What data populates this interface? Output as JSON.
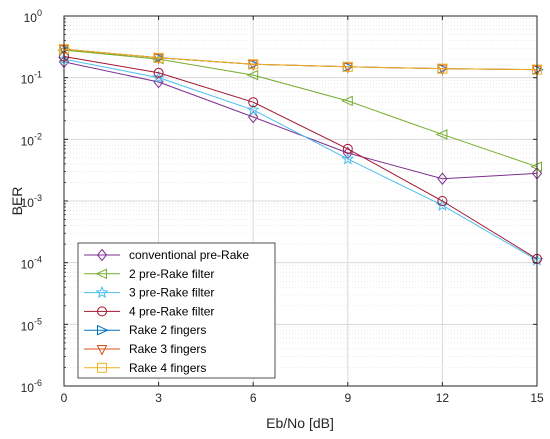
{
  "chart_data": {
    "type": "line",
    "title": "",
    "xlabel": "Eb/No [dB]",
    "ylabel": "BER",
    "x": [
      0,
      3,
      6,
      9,
      12,
      15
    ],
    "xlim": [
      0,
      15
    ],
    "ylim": [
      1e-06,
      1
    ],
    "yscale": "log",
    "xticks": [
      "0",
      "3",
      "6",
      "9",
      "12",
      "15"
    ],
    "yticks": [
      {
        "base": "10",
        "exp": "-6"
      },
      {
        "base": "10",
        "exp": "-5"
      },
      {
        "base": "10",
        "exp": "-4"
      },
      {
        "base": "10",
        "exp": "-3"
      },
      {
        "base": "10",
        "exp": "-2"
      },
      {
        "base": "10",
        "exp": "-1"
      },
      {
        "base": "10",
        "exp": "0"
      }
    ],
    "grid": true,
    "legend_position": "bottom-left",
    "series": [
      {
        "name": "conventional pre-Rake",
        "marker": "diamond",
        "color": "#7E2F8E",
        "values": [
          0.18,
          0.085,
          0.023,
          0.006,
          0.0023,
          0.0028
        ]
      },
      {
        "name": "2 pre-Rake filter",
        "marker": "triangle-left",
        "color": "#77AC30",
        "values": [
          0.28,
          0.2,
          0.11,
          0.042,
          0.012,
          0.0036
        ]
      },
      {
        "name": "3 pre-Rake filter",
        "marker": "star",
        "color": "#4DBEEE",
        "values": [
          0.2,
          0.1,
          0.03,
          0.0048,
          0.00085,
          0.00011
        ]
      },
      {
        "name": "4 pre-Rake filter",
        "marker": "circle",
        "color": "#A2142F",
        "values": [
          0.22,
          0.12,
          0.04,
          0.007,
          0.001,
          0.000115
        ]
      },
      {
        "name": "Rake 2 fingers",
        "marker": "triangle-right",
        "color": "#0072BD",
        "values": [
          0.29,
          0.21,
          0.165,
          0.15,
          0.14,
          0.135
        ]
      },
      {
        "name": "Rake 3 fingers",
        "marker": "triangle-down",
        "color": "#D95319",
        "values": [
          0.29,
          0.21,
          0.165,
          0.15,
          0.14,
          0.135
        ]
      },
      {
        "name": "Rake 4 fingers",
        "marker": "square",
        "color": "#EDB120",
        "values": [
          0.29,
          0.21,
          0.165,
          0.15,
          0.14,
          0.135
        ]
      }
    ]
  }
}
